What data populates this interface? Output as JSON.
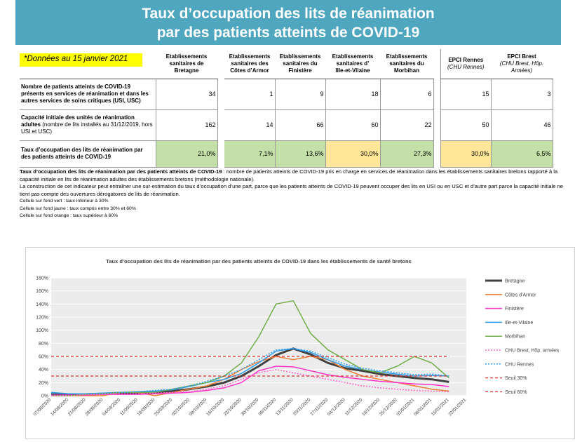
{
  "banner": {
    "line1": "Taux d’occupation des lits de réanimation",
    "line2": "par des patients atteints de COVID-19"
  },
  "date_badge": "*Données au 15 janvier 2021",
  "table": {
    "headers": [
      {
        "l1": "Etablissements",
        "l2": "sanitaires de",
        "l3": "Bretagne"
      },
      {
        "l1": "Etablissements",
        "l2": "sanitaires des",
        "l3": "Côtes d’Armor"
      },
      {
        "l1": "Etablissements",
        "l2": "sanitaires du",
        "l3": "Finistère"
      },
      {
        "l1": "Etablissements",
        "l2": "sanitaires d’",
        "l3": "Ille-et-Vilaine"
      },
      {
        "l1": "Etablissements",
        "l2": "sanitaires du",
        "l3": "Morbihan"
      },
      {
        "l1": "EPCI Rennes",
        "l2": "(CHU Rennes)"
      },
      {
        "l1": "EPCI Brest",
        "l2": "(CHU Brest, Hôp.",
        "l3": "Armées)"
      }
    ],
    "rows": [
      {
        "label": "Nombre de patients atteints de COVID-19 présents en services de réanimation et dans les autres services de soins critiques (USI, USC)",
        "values": [
          "34",
          "1",
          "9",
          "18",
          "6",
          "15",
          "3"
        ]
      },
      {
        "label": "Capacité initiale des unités de réanimation adultes",
        "label_small": "(nombre de lits installés au 31/12/2019, hors USI et USC)",
        "values": [
          "162",
          "14",
          "66",
          "60",
          "22",
          "50",
          "46"
        ]
      },
      {
        "label": "Taux d’occupation des lits de réanimation par des patients atteints de COVID-19",
        "values": [
          "21,0%",
          "7,1%",
          "13,6%",
          "30,0%",
          "27,3%",
          "30,0%",
          "6,5%"
        ]
      }
    ]
  },
  "notes": {
    "def_bold": "Taux d’occupation des lits de réanimation par des patients atteints de COVID-19",
    "def_text": " : nombre de patients atteints de COVID-19 pris en charge en services de réanimation dans les établissements sanitaires bretons rapporté à la capacité initiale en lits de réanimation adultes des établissements bretons (méthodologie nationale).",
    "caveat": "La construction de cet indicateur peut entraîner une sur-estimation du taux d’occupation d’une part, parce que les patients atteints de COVID-19 peuvent occuper des lits en USI ou en USC et d’autre part parce la capacité initiale ne tient pas compte des ouvertures dérogatoires de lits de réanimation.",
    "green": "Cellule sur fond vert :  taux inférieur à 30%",
    "yellow": "Cellule sur fond jaune : taux compris entre 30% et 60%",
    "orange": "Cellule sur fond orange : taux supérieur à 60%"
  },
  "colors": {
    "banner": "#4fa6bf",
    "green_cell": "#c4e0a8",
    "yellow_cell": "#ffe699",
    "plot_bg": "#ececec"
  },
  "chart_data": {
    "type": "line",
    "title": "Taux d’occupation des lits de réanimation par des patients atteints de COVID-19 dans les établissements de santé bretons",
    "ylim": [
      0,
      180
    ],
    "yticks": [
      "0%",
      "20%",
      "40%",
      "60%",
      "80%",
      "100%",
      "120%",
      "140%",
      "160%",
      "180%"
    ],
    "xticks": [
      "07/08/2020",
      "14/08/2020",
      "21/08/2020",
      "28/08/2020",
      "04/09/2020",
      "11/09/2020",
      "18/09/2020",
      "25/09/2020",
      "02/10/2020",
      "09/10/2020",
      "16/10/2020",
      "23/10/2020",
      "30/10/2020",
      "06/11/2020",
      "13/11/2020",
      "20/11/2020",
      "27/11/2020",
      "04/12/2020",
      "11/12/2020",
      "18/12/2020",
      "25/12/2020",
      "01/01/2021",
      "08/01/2021",
      "15/01/2021",
      "22/01/2021"
    ],
    "x": [
      "07/08/2020",
      "14/08/2020",
      "21/08/2020",
      "28/08/2020",
      "04/09/2020",
      "11/09/2020",
      "18/09/2020",
      "25/09/2020",
      "02/10/2020",
      "09/10/2020",
      "16/10/2020",
      "23/10/2020",
      "30/10/2020",
      "06/11/2020",
      "13/11/2020",
      "20/11/2020",
      "27/11/2020",
      "04/12/2020",
      "11/12/2020",
      "18/12/2020",
      "25/12/2020",
      "01/01/2021",
      "08/01/2021",
      "15/01/2021"
    ],
    "legend_position": "right",
    "series": [
      {
        "name": "Bretagne",
        "color": "#404040",
        "dash": "",
        "width": 3,
        "values": [
          2,
          2,
          2,
          3,
          4,
          4,
          5,
          7,
          10,
          14,
          20,
          30,
          45,
          62,
          72,
          63,
          50,
          42,
          38,
          33,
          30,
          27,
          25,
          21
        ]
      },
      {
        "name": "Côtes d'Armor",
        "color": "#ed7d31",
        "dash": "",
        "width": 1.5,
        "values": [
          0,
          0,
          0,
          0,
          5,
          5,
          0,
          5,
          10,
          15,
          25,
          40,
          52,
          60,
          55,
          60,
          55,
          40,
          30,
          25,
          20,
          15,
          10,
          7
        ]
      },
      {
        "name": "Finistère",
        "color": "#ff33cc",
        "dash": "",
        "width": 1.5,
        "values": [
          1,
          1,
          1,
          2,
          2,
          2,
          3,
          4,
          5,
          8,
          12,
          20,
          38,
          45,
          44,
          38,
          32,
          28,
          25,
          22,
          20,
          18,
          17,
          14
        ]
      },
      {
        "name": "Ille-et-Vilaine",
        "color": "#2f9ef0",
        "dash": "",
        "width": 1.5,
        "values": [
          5,
          3,
          3,
          4,
          5,
          6,
          7,
          9,
          14,
          20,
          25,
          34,
          50,
          68,
          72,
          66,
          55,
          45,
          40,
          36,
          33,
          30,
          31,
          30
        ]
      },
      {
        "name": "Morbihan",
        "color": "#70ad47",
        "dash": "",
        "width": 1.5,
        "values": [
          0,
          0,
          2,
          3,
          5,
          5,
          5,
          10,
          15,
          20,
          30,
          50,
          90,
          140,
          145,
          95,
          70,
          55,
          40,
          35,
          45,
          60,
          50,
          27
        ]
      },
      {
        "name": "CHU Brest, Hôp. armées",
        "color": "#ff66cc",
        "dash": "2,2",
        "width": 1.5,
        "values": [
          0,
          0,
          2,
          2,
          3,
          3,
          4,
          5,
          6,
          10,
          15,
          25,
          35,
          40,
          35,
          30,
          25,
          20,
          15,
          12,
          10,
          8,
          7,
          6
        ]
      },
      {
        "name": "CHU Rennes",
        "color": "#2f9ef0",
        "dash": "2,2",
        "width": 1.5,
        "values": [
          4,
          3,
          3,
          4,
          5,
          6,
          8,
          10,
          15,
          22,
          30,
          40,
          55,
          70,
          72,
          68,
          58,
          48,
          42,
          38,
          35,
          32,
          33,
          30
        ]
      },
      {
        "name": "Seuil 30%",
        "color": "#e03030",
        "dash": "4,3",
        "width": 1.2,
        "values": [
          30,
          30,
          30,
          30,
          30,
          30,
          30,
          30,
          30,
          30,
          30,
          30,
          30,
          30,
          30,
          30,
          30,
          30,
          30,
          30,
          30,
          30,
          30,
          30
        ]
      },
      {
        "name": "Seuil 60%",
        "color": "#e03030",
        "dash": "4,3",
        "width": 1.2,
        "values": [
          60,
          60,
          60,
          60,
          60,
          60,
          60,
          60,
          60,
          60,
          60,
          60,
          60,
          60,
          60,
          60,
          60,
          60,
          60,
          60,
          60,
          60,
          60,
          60
        ]
      }
    ]
  }
}
